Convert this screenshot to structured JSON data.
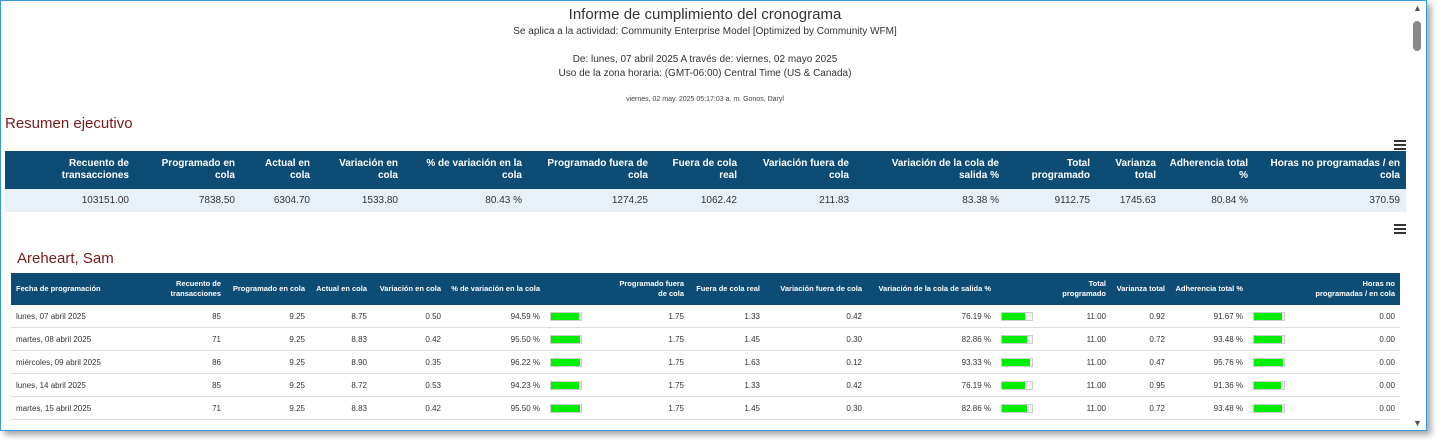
{
  "report": {
    "title": "Informe de cumplimiento del cronograma",
    "subtitle": "Se aplica a la actividad: Community Enterprise Model [Optimized by Community WFM]",
    "date_range": "De: lunes, 07 abril 2025 A través de: viernes, 02 mayo 2025",
    "timezone": "Uso de la zona horaria: (GMT-06:00) Central Time (US & Canada)",
    "generated": "viernes, 02 may. 2025 05:17:03 a. m. Gonos, Daryl"
  },
  "summary": {
    "title": "Resumen ejecutivo",
    "headers": [
      "Recuento de transacciones",
      "Programado en cola",
      "Actual en cola",
      "Variación en cola",
      "% de variación en la cola",
      "Programado fuera de cola",
      "Fuera de cola real",
      "Variación fuera de cola",
      "Variación de la cola de salida %",
      "Total programado",
      "Varianza total",
      "Adherencia total %",
      "Horas no programadas / en cola"
    ],
    "values": [
      "103151.00",
      "7838.50",
      "6304.70",
      "1533.80",
      "80.43 %",
      "1274.25",
      "1062.42",
      "211.83",
      "83.38 %",
      "9112.75",
      "1745.63",
      "80.84 %",
      "370.59"
    ]
  },
  "agent": {
    "name": "Areheart, Sam",
    "headers": [
      "Fecha de programación",
      "Recuento de transacciones",
      "Programado en cola",
      "Actual en cola",
      "Variación en cola",
      "% de variación en la cola",
      "",
      "Programado fuera de cola",
      "Fuera de cola real",
      "Variación fuera de cola",
      "Variación de la cola de salida %",
      "",
      "Total programado",
      "Varianza total",
      "Adherencia total %",
      "",
      "Horas no programadas / en cola"
    ],
    "rows": [
      {
        "date": "lunes, 07 abril 2025",
        "count": "85",
        "prog_in": "9.25",
        "act_in": "8.75",
        "var_in": "0.50",
        "pct_in": "94.59 %",
        "pct_in_v": 0.9459,
        "prog_out": "1.75",
        "act_out": "1.33",
        "var_out": "0.42",
        "pct_out": "76.19 %",
        "pct_out_v": 0.7619,
        "total": "11.00",
        "var_total": "0.92",
        "adh": "91.67 %",
        "adh_v": 0.9167,
        "unsched": "0.00"
      },
      {
        "date": "martes, 08 abril 2025",
        "count": "71",
        "prog_in": "9.25",
        "act_in": "8.83",
        "var_in": "0.42",
        "pct_in": "95.50 %",
        "pct_in_v": 0.955,
        "prog_out": "1.75",
        "act_out": "1.45",
        "var_out": "0.30",
        "pct_out": "82.86 %",
        "pct_out_v": 0.8286,
        "total": "11.00",
        "var_total": "0.72",
        "adh": "93.48 %",
        "adh_v": 0.9348,
        "unsched": "0.00"
      },
      {
        "date": "miércoles, 09 abril 2025",
        "count": "86",
        "prog_in": "9.25",
        "act_in": "8.90",
        "var_in": "0.35",
        "pct_in": "96.22 %",
        "pct_in_v": 0.9622,
        "prog_out": "1.75",
        "act_out": "1.63",
        "var_out": "0.12",
        "pct_out": "93.33 %",
        "pct_out_v": 0.9333,
        "total": "11.00",
        "var_total": "0.47",
        "adh": "95.76 %",
        "adh_v": 0.9576,
        "unsched": "0.00"
      },
      {
        "date": "lunes, 14 abril 2025",
        "count": "85",
        "prog_in": "9.25",
        "act_in": "8.72",
        "var_in": "0.53",
        "pct_in": "94.23 %",
        "pct_in_v": 0.9423,
        "prog_out": "1.75",
        "act_out": "1.33",
        "var_out": "0.42",
        "pct_out": "76.19 %",
        "pct_out_v": 0.7619,
        "total": "11.00",
        "var_total": "0.95",
        "adh": "91.36 %",
        "adh_v": 0.9136,
        "unsched": "0.00"
      },
      {
        "date": "martes, 15 abril 2025",
        "count": "71",
        "prog_in": "9.25",
        "act_in": "8.83",
        "var_in": "0.42",
        "pct_in": "95.50 %",
        "pct_in_v": 0.955,
        "prog_out": "1.75",
        "act_out": "1.45",
        "var_out": "0.30",
        "pct_out": "82.86 %",
        "pct_out_v": 0.8286,
        "total": "11.00",
        "var_total": "0.72",
        "adh": "93.48 %",
        "adh_v": 0.9348,
        "unsched": "0.00"
      }
    ]
  },
  "icons": {
    "menu": "hamburger-menu-icon"
  },
  "colors": {
    "header_bg": "#0d4d75",
    "section_title": "#7a1a1a",
    "bar_fill": "#00ee00",
    "summary_row": "#e8f0f8"
  }
}
